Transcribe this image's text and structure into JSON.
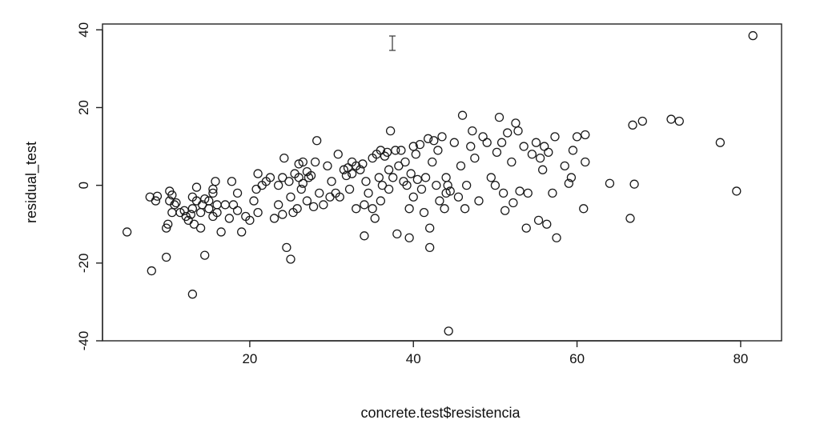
{
  "chart_data": {
    "type": "scatter",
    "title": "",
    "xlabel": "concrete.test$resistencia",
    "ylabel": "residual_test",
    "xlim": [
      2,
      85
    ],
    "ylim": [
      -40,
      41.5
    ],
    "xticks": [
      20,
      40,
      60,
      80
    ],
    "yticks": [
      -40,
      -20,
      0,
      20,
      40
    ],
    "grid": false,
    "legend": "none",
    "marker": "open-circle",
    "series": [
      {
        "points": [
          [
            5,
            -12
          ],
          [
            8,
            -22
          ],
          [
            7.8,
            -3
          ],
          [
            8.5,
            -4
          ],
          [
            8.7,
            -2.8
          ],
          [
            9.8,
            -11
          ],
          [
            9.8,
            -18.5
          ],
          [
            10,
            -10
          ],
          [
            10.2,
            -4
          ],
          [
            10.2,
            -1.5
          ],
          [
            10.5,
            -7
          ],
          [
            10.5,
            -2.5
          ],
          [
            10.8,
            -5
          ],
          [
            11,
            -4.5
          ],
          [
            11.5,
            -7
          ],
          [
            12,
            -6.5
          ],
          [
            12.2,
            -8
          ],
          [
            12.5,
            -9
          ],
          [
            12.8,
            -7.5
          ],
          [
            13,
            -6
          ],
          [
            13,
            -3
          ],
          [
            13,
            -28
          ],
          [
            13.2,
            -10
          ],
          [
            13.5,
            -0.5
          ],
          [
            13.5,
            -4
          ],
          [
            14,
            -11
          ],
          [
            14,
            -7
          ],
          [
            14.2,
            -5
          ],
          [
            14.5,
            -3.5
          ],
          [
            14.5,
            -18
          ],
          [
            15,
            -6
          ],
          [
            15,
            -4
          ],
          [
            15.5,
            -8
          ],
          [
            15.5,
            -2
          ],
          [
            15.5,
            -1
          ],
          [
            15.8,
            1
          ],
          [
            16,
            -7
          ],
          [
            16,
            -5
          ],
          [
            16.5,
            -12
          ],
          [
            17,
            -5
          ],
          [
            17.5,
            -8.5
          ],
          [
            17.8,
            1
          ],
          [
            18,
            -5
          ],
          [
            18.5,
            -6.5
          ],
          [
            18.5,
            -2
          ],
          [
            19,
            -12
          ],
          [
            19.5,
            -8
          ],
          [
            20,
            -9
          ],
          [
            20.5,
            -4
          ],
          [
            20.8,
            -1
          ],
          [
            21,
            3
          ],
          [
            21,
            -7
          ],
          [
            21.5,
            0
          ],
          [
            22,
            1
          ],
          [
            22.5,
            2
          ],
          [
            23,
            -8.5
          ],
          [
            23.5,
            0
          ],
          [
            23.5,
            -5
          ],
          [
            24,
            -7.5
          ],
          [
            24,
            2
          ],
          [
            24.2,
            7
          ],
          [
            24.5,
            -16
          ],
          [
            24.8,
            1
          ],
          [
            25,
            -3
          ],
          [
            25,
            -19
          ],
          [
            25.3,
            -7
          ],
          [
            25.5,
            3
          ],
          [
            25.8,
            -6
          ],
          [
            26,
            5.5
          ],
          [
            26,
            2
          ],
          [
            26.3,
            -1
          ],
          [
            26.5,
            6
          ],
          [
            26.5,
            0.5
          ],
          [
            27,
            3.5
          ],
          [
            27,
            -4
          ],
          [
            27.2,
            2
          ],
          [
            27.5,
            2.5
          ],
          [
            27.8,
            -5.5
          ],
          [
            28,
            6
          ],
          [
            28.2,
            11.5
          ],
          [
            28.5,
            -2
          ],
          [
            29,
            -5
          ],
          [
            29.5,
            5
          ],
          [
            29.8,
            -3
          ],
          [
            30,
            1
          ],
          [
            30.5,
            -2
          ],
          [
            30.8,
            8
          ],
          [
            31,
            -3
          ],
          [
            31.5,
            4
          ],
          [
            31.8,
            2.5
          ],
          [
            32,
            4.5
          ],
          [
            32.2,
            -1
          ],
          [
            32.5,
            3
          ],
          [
            32.5,
            6
          ],
          [
            33,
            5
          ],
          [
            33,
            -6
          ],
          [
            33.5,
            4
          ],
          [
            33.8,
            5.5
          ],
          [
            34,
            -5
          ],
          [
            34,
            -13
          ],
          [
            34.2,
            1
          ],
          [
            34.5,
            -2
          ],
          [
            35,
            7
          ],
          [
            35,
            -6
          ],
          [
            35.3,
            -8.5
          ],
          [
            35.5,
            8
          ],
          [
            35.8,
            2
          ],
          [
            36,
            9
          ],
          [
            36,
            -4
          ],
          [
            36.2,
            0
          ],
          [
            36.5,
            7.5
          ],
          [
            36.8,
            8.5
          ],
          [
            37,
            4
          ],
          [
            37,
            -1
          ],
          [
            37.2,
            14
          ],
          [
            37.5,
            2
          ],
          [
            37.8,
            9
          ],
          [
            38,
            -12.5
          ],
          [
            38.2,
            5
          ],
          [
            38.5,
            9
          ],
          [
            38.8,
            1
          ],
          [
            39,
            6
          ],
          [
            39.2,
            0
          ],
          [
            39.5,
            -6
          ],
          [
            39.5,
            -13.5
          ],
          [
            39.7,
            3
          ],
          [
            40,
            10
          ],
          [
            40,
            -3
          ],
          [
            40.3,
            8
          ],
          [
            40.5,
            1.5
          ],
          [
            40.8,
            10.5
          ],
          [
            41,
            -1
          ],
          [
            41.3,
            -7
          ],
          [
            41.5,
            2
          ],
          [
            41.8,
            12
          ],
          [
            42,
            -11
          ],
          [
            42,
            -16
          ],
          [
            42.3,
            6
          ],
          [
            42.5,
            11.5
          ],
          [
            42.8,
            0
          ],
          [
            43,
            9
          ],
          [
            43.2,
            -4
          ],
          [
            43.5,
            12.5
          ],
          [
            43.8,
            -6
          ],
          [
            44,
            -2
          ],
          [
            44,
            2
          ],
          [
            44.2,
            0
          ],
          [
            44.3,
            -37.5
          ],
          [
            44.5,
            -1.5
          ],
          [
            45,
            11
          ],
          [
            45.5,
            -3
          ],
          [
            45.8,
            5
          ],
          [
            46,
            18
          ],
          [
            46.3,
            -6
          ],
          [
            46.5,
            0
          ],
          [
            47,
            10
          ],
          [
            47.2,
            14
          ],
          [
            47.5,
            7
          ],
          [
            48,
            -4
          ],
          [
            48.5,
            12.5
          ],
          [
            49,
            11
          ],
          [
            49.5,
            2
          ],
          [
            50,
            0
          ],
          [
            50.2,
            8.5
          ],
          [
            50.5,
            17.5
          ],
          [
            50.8,
            11
          ],
          [
            51,
            -2
          ],
          [
            51.2,
            -6.5
          ],
          [
            51.5,
            13.5
          ],
          [
            52,
            6
          ],
          [
            52.2,
            -4.5
          ],
          [
            52.5,
            16
          ],
          [
            52.8,
            14
          ],
          [
            53,
            -1.5
          ],
          [
            53.5,
            10
          ],
          [
            53.8,
            -11
          ],
          [
            54,
            -2
          ],
          [
            54.5,
            8
          ],
          [
            55,
            11
          ],
          [
            55.3,
            -9
          ],
          [
            55.5,
            7
          ],
          [
            55.8,
            4
          ],
          [
            56,
            10
          ],
          [
            56.3,
            -10
          ],
          [
            56.5,
            8.5
          ],
          [
            57,
            -2
          ],
          [
            57.3,
            12.5
          ],
          [
            57.5,
            -13.5
          ],
          [
            58.5,
            5
          ],
          [
            59,
            0.5
          ],
          [
            59.3,
            2
          ],
          [
            59.5,
            9
          ],
          [
            60,
            12.5
          ],
          [
            60.8,
            -6
          ],
          [
            61,
            13
          ],
          [
            61,
            6
          ],
          [
            64,
            0.5
          ],
          [
            66.5,
            -8.5
          ],
          [
            66.8,
            15.5
          ],
          [
            67,
            0.3
          ],
          [
            68,
            16.5
          ],
          [
            71.5,
            17
          ],
          [
            72.5,
            16.5
          ],
          [
            77.5,
            11
          ],
          [
            79.5,
            -1.5
          ],
          [
            81.5,
            38.5
          ]
        ]
      }
    ]
  }
}
